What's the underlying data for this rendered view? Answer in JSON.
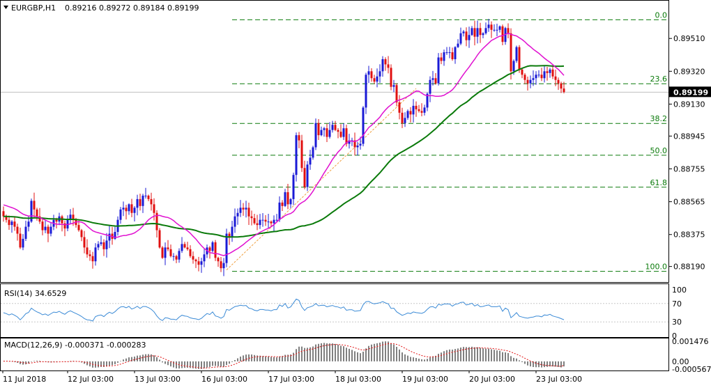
{
  "header": {
    "symbol": "EURGBP,H1",
    "ohlc": "0.89216 0.89272 0.89184 0.89199"
  },
  "colors": {
    "candle_up": "#1a1ad6",
    "candle_down": "#e01010",
    "ma_fast": "#e010d0",
    "ma_slow": "#0a7a0a",
    "fib_line": "#0a7a0a",
    "trend_line": "#f0a040",
    "macd_signal": "#e01010",
    "rsi_line": "#3a8ad6",
    "grid": "#c8c8c8",
    "frame": "#000000"
  },
  "chart_data": [
    {
      "type": "candlestick",
      "name": "price",
      "title": "EURGBP,H1",
      "y_ticks": [
        "0.89510",
        "0.89320",
        "0.89130",
        "0.88945",
        "0.88755",
        "0.88565",
        "0.88375",
        "0.88190"
      ],
      "ylim": [
        0.8812,
        0.8966
      ],
      "current_price": "0.89199",
      "x_ticks": [
        "11 Jul 2018",
        "12 Jul 03:00",
        "13 Jul 03:00",
        "16 Jul 03:00",
        "17 Jul 03:00",
        "18 Jul 03:00",
        "19 Jul 03:00",
        "20 Jul 03:00",
        "23 Jul 03:00"
      ],
      "fib_levels": [
        {
          "label": "0.0",
          "price": 0.89618
        },
        {
          "label": "23.6",
          "price": 0.89248
        },
        {
          "label": "38.2",
          "price": 0.89018
        },
        {
          "label": "50.0",
          "price": 0.88834
        },
        {
          "label": "61.8",
          "price": 0.88649
        },
        {
          "label": "100.0",
          "price": 0.88162
        }
      ],
      "trendline": {
        "from": {
          "bar": 80,
          "price": 0.8817
        },
        "to": {
          "bar": 148,
          "price": 0.8922
        }
      },
      "closes": [
        0.8848,
        0.8846,
        0.8843,
        0.8845,
        0.8842,
        0.8838,
        0.883,
        0.8835,
        0.8842,
        0.8845,
        0.8857,
        0.8852,
        0.8848,
        0.8845,
        0.884,
        0.8842,
        0.8838,
        0.8842,
        0.8846,
        0.8845,
        0.8848,
        0.8844,
        0.8841,
        0.8846,
        0.8849,
        0.8846,
        0.8843,
        0.884,
        0.8836,
        0.883,
        0.8826,
        0.8825,
        0.8822,
        0.883,
        0.8832,
        0.8833,
        0.8829,
        0.8834,
        0.8838,
        0.8835,
        0.8839,
        0.8846,
        0.8852,
        0.8853,
        0.8851,
        0.8855,
        0.885,
        0.8853,
        0.8858,
        0.8854,
        0.886,
        0.886,
        0.8858,
        0.8855,
        0.885,
        0.884,
        0.883,
        0.8824,
        0.883,
        0.8829,
        0.8825,
        0.8825,
        0.8823,
        0.8828,
        0.8832,
        0.883,
        0.8829,
        0.8825,
        0.8823,
        0.8822,
        0.882,
        0.8822,
        0.8826,
        0.883,
        0.8828,
        0.8833,
        0.8824,
        0.8822,
        0.8818,
        0.8821,
        0.8838,
        0.8836,
        0.8842,
        0.8848,
        0.885,
        0.8853,
        0.8852,
        0.8853,
        0.8848,
        0.8847,
        0.8844,
        0.8843,
        0.8846,
        0.8846,
        0.8845,
        0.8845,
        0.8844,
        0.8846,
        0.8846,
        0.8856,
        0.8854,
        0.8862,
        0.8855,
        0.8858,
        0.8872,
        0.8895,
        0.8892,
        0.8876,
        0.8865,
        0.8878,
        0.8882,
        0.8888,
        0.8902,
        0.8895,
        0.8898,
        0.8899,
        0.8894,
        0.8898,
        0.8901,
        0.8898,
        0.8897,
        0.8894,
        0.8899,
        0.889,
        0.8892,
        0.8892,
        0.8888,
        0.8889,
        0.889,
        0.8911,
        0.893,
        0.8932,
        0.8928,
        0.8926,
        0.8929,
        0.8932,
        0.8939,
        0.8936,
        0.8934,
        0.8923,
        0.8924,
        0.8914,
        0.8908,
        0.8902,
        0.8905,
        0.8909,
        0.8907,
        0.8912,
        0.891,
        0.8909,
        0.8908,
        0.8911,
        0.8919,
        0.8927,
        0.8928,
        0.8925,
        0.894,
        0.8938,
        0.8943,
        0.8943,
        0.8943,
        0.8939,
        0.8946,
        0.8948,
        0.8954,
        0.8955,
        0.895,
        0.8953,
        0.8957,
        0.8952,
        0.8957,
        0.8953,
        0.8954,
        0.8957,
        0.8959,
        0.8956,
        0.8956,
        0.8956,
        0.8958,
        0.8949,
        0.8957,
        0.8954,
        0.8932,
        0.8938,
        0.8946,
        0.8933,
        0.893,
        0.8927,
        0.8925,
        0.8927,
        0.8928,
        0.893,
        0.893,
        0.8928,
        0.8932,
        0.8931,
        0.8933,
        0.8929,
        0.8927,
        0.8925,
        0.8922,
        0.892
      ]
    },
    {
      "type": "line",
      "name": "rsi",
      "label": "RSI(14) 34.6529",
      "y_ticks": [
        "100",
        "70",
        "30",
        "0"
      ],
      "ylim": [
        0,
        100
      ],
      "levels": [
        70,
        30
      ],
      "last": 34.6529
    },
    {
      "type": "histogram",
      "name": "macd",
      "label": "MACD(12,26,9) -0.000371 -0.000283",
      "y_ticks": [
        "0.001476",
        "0.00",
        "-0.000567"
      ],
      "ylim": [
        -0.000567,
        0.001476
      ],
      "macd_last": -0.000371,
      "signal_last": -0.000283
    }
  ]
}
